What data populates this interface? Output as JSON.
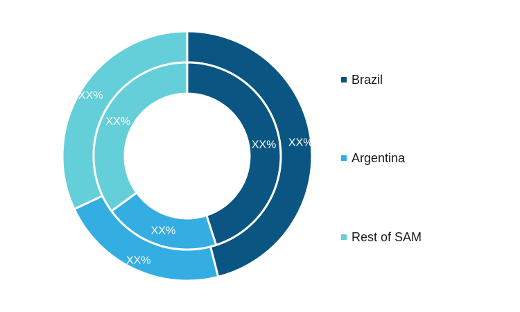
{
  "chart_data": {
    "type": "pie",
    "variant": "double-donut",
    "categories": [
      "Brazil",
      "Argentina",
      "Rest of SAM"
    ],
    "colors": [
      "#0a5581",
      "#33ade2",
      "#64cfd9"
    ],
    "series": [
      {
        "values": [
          46,
          22,
          32
        ],
        "labels": [
          "XX%",
          "XX%",
          "XX%"
        ]
      },
      {
        "values": [
          45,
          20,
          35
        ],
        "labels": [
          "XX%",
          "XX%",
          "XX%"
        ]
      }
    ],
    "legend_position": "right"
  }
}
